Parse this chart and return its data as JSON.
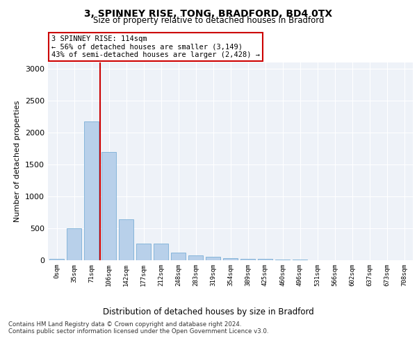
{
  "title1": "3, SPINNEY RISE, TONG, BRADFORD, BD4 0TX",
  "title2": "Size of property relative to detached houses in Bradford",
  "xlabel": "Distribution of detached houses by size in Bradford",
  "ylabel": "Number of detached properties",
  "categories": [
    "0sqm",
    "35sqm",
    "71sqm",
    "106sqm",
    "142sqm",
    "177sqm",
    "212sqm",
    "248sqm",
    "283sqm",
    "319sqm",
    "354sqm",
    "389sqm",
    "425sqm",
    "460sqm",
    "496sqm",
    "531sqm",
    "566sqm",
    "602sqm",
    "637sqm",
    "673sqm",
    "708sqm"
  ],
  "values": [
    20,
    500,
    2180,
    1700,
    640,
    260,
    260,
    115,
    80,
    50,
    35,
    25,
    20,
    10,
    8,
    4,
    3,
    2,
    1,
    1,
    1
  ],
  "bar_color": "#b8d0ea",
  "bar_edge_color": "#7aaed6",
  "highlight_line_color": "#cc0000",
  "highlight_line_at": 2.5,
  "annotation_text": "3 SPINNEY RISE: 114sqm\n← 56% of detached houses are smaller (3,149)\n43% of semi-detached houses are larger (2,428) →",
  "annotation_box_color": "#ffffff",
  "annotation_box_edge": "#cc0000",
  "ylim": [
    0,
    3100
  ],
  "yticks": [
    0,
    500,
    1000,
    1500,
    2000,
    2500,
    3000
  ],
  "footer_text": "Contains HM Land Registry data © Crown copyright and database right 2024.\nContains public sector information licensed under the Open Government Licence v3.0.",
  "bg_color": "#eef2f8",
  "plot_bg_color": "#eef2f8"
}
